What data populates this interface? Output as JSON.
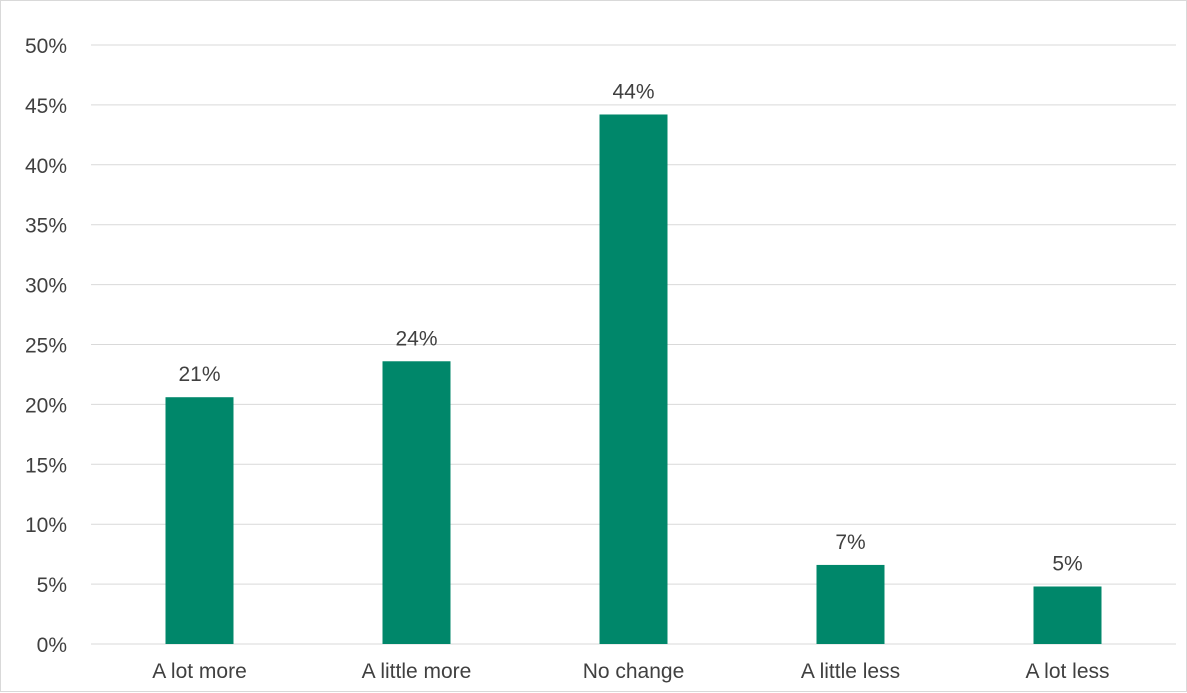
{
  "chart_data": {
    "type": "bar",
    "title": "",
    "xlabel": "",
    "ylabel": "",
    "categories": [
      "A lot more",
      "A little more",
      "No change",
      "A little less",
      "A lot less"
    ],
    "values": [
      20.6,
      23.6,
      44.2,
      6.6,
      4.8
    ],
    "data_labels": [
      "21%",
      "24%",
      "44%",
      "7%",
      "5%"
    ],
    "ylim": [
      0,
      50
    ],
    "y_ticks": [
      0,
      5,
      10,
      15,
      20,
      25,
      30,
      35,
      40,
      45,
      50
    ],
    "y_tick_labels": [
      "0%",
      "5%",
      "10%",
      "15%",
      "20%",
      "25%",
      "30%",
      "35%",
      "40%",
      "45%",
      "50%"
    ],
    "bar_color": "#00876a",
    "grid": true,
    "legend": "none"
  }
}
